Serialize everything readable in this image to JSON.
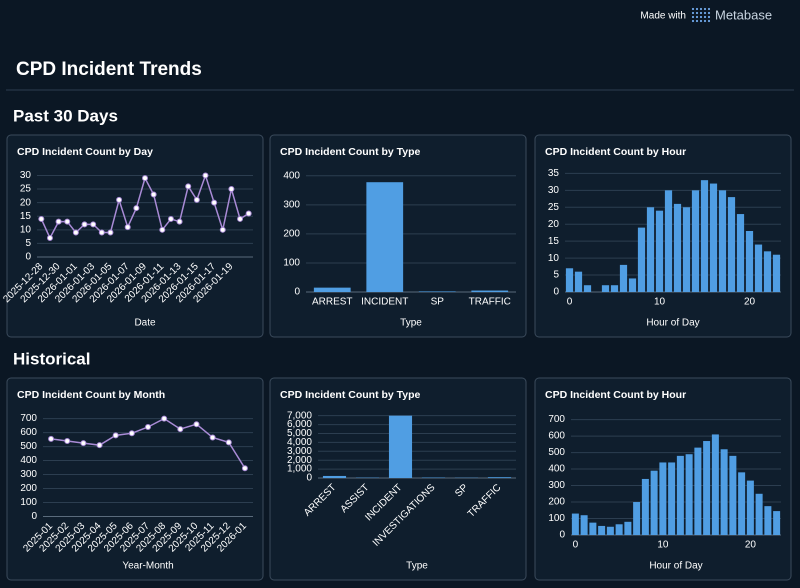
{
  "header": {
    "brand_prefix": "Made with",
    "brand": "Metabase",
    "title": "CPD Incident Trends"
  },
  "sections": [
    "Past 30 Days",
    "Historical"
  ],
  "chart_data": [
    {
      "type": "line",
      "title": "CPD Incident Count by Day",
      "xlabel": "Date",
      "categories": [
        "2025-12-28",
        null,
        "2025-12-30",
        null,
        "2026-01-01",
        null,
        "2026-01-03",
        null,
        "2026-01-05",
        null,
        "2026-01-07",
        null,
        "2026-01-09",
        null,
        "2026-01-11",
        null,
        "2026-01-13",
        null,
        "2026-01-15",
        null,
        "2026-01-17",
        null,
        "2026-01-19",
        null,
        null
      ],
      "values": [
        14,
        7,
        13,
        13,
        9,
        12,
        12,
        9,
        9,
        21,
        11,
        18,
        29,
        23,
        10,
        14,
        13,
        26,
        21,
        30,
        20,
        10,
        25,
        14,
        16
      ],
      "color": "#a98bd6",
      "ylim": [
        0,
        32
      ],
      "yticks": [
        0,
        5,
        10,
        15,
        20,
        25,
        30
      ],
      "grid": true
    },
    {
      "type": "bar",
      "title": "CPD Incident Count by Type",
      "xlabel": "Type",
      "categories": [
        "ARREST",
        "INCIDENT",
        "SP",
        "TRAFFIC"
      ],
      "values": [
        15,
        378,
        2,
        5
      ],
      "color": "#509ee3",
      "ylim": [
        0,
        420
      ],
      "yticks": [
        0,
        100,
        200,
        300,
        400
      ],
      "grid": true
    },
    {
      "type": "bar",
      "title": "CPD Incident Count by Hour",
      "xlabel": "Hour of Day",
      "x": [
        0,
        1,
        2,
        3,
        4,
        5,
        6,
        7,
        8,
        9,
        10,
        11,
        12,
        13,
        14,
        15,
        16,
        17,
        18,
        19,
        20,
        21,
        22,
        23
      ],
      "values": [
        7,
        6,
        2,
        0,
        2,
        2,
        8,
        4,
        19,
        25,
        24,
        30,
        26,
        25,
        30,
        33,
        32,
        30,
        28,
        23,
        18,
        14,
        12,
        11
      ],
      "color": "#509ee3",
      "xlim": [
        -0.5,
        23.5
      ],
      "xticks": [
        0,
        10,
        20
      ],
      "ylim": [
        0,
        36
      ],
      "yticks": [
        0,
        5,
        10,
        15,
        20,
        25,
        30,
        35
      ],
      "grid": true
    },
    {
      "type": "line",
      "title": "CPD Incident Count by Month",
      "xlabel": "Year-Month",
      "categories": [
        "2025-01",
        "2025-02",
        "2025-03",
        "2025-04",
        "2025-05",
        "2025-06",
        "2025-07",
        "2025-08",
        "2025-09",
        "2025-10",
        "2025-11",
        "2025-12",
        "2026-01"
      ],
      "values": [
        555,
        540,
        525,
        510,
        580,
        595,
        640,
        700,
        625,
        660,
        565,
        530,
        345
      ],
      "color": "#a98bd6",
      "ylim": [
        0,
        740
      ],
      "yticks": [
        0,
        100,
        200,
        300,
        400,
        500,
        600,
        700
      ],
      "grid": true
    },
    {
      "type": "bar",
      "title": "CPD Incident Count by Type",
      "xlabel": "Type",
      "categories": [
        "ARREST",
        "ASSIST",
        "INCIDENT",
        "INVESTIGATIONS",
        "SP",
        "TRAFFIC"
      ],
      "values": [
        230,
        40,
        7000,
        50,
        30,
        90
      ],
      "color": "#509ee3",
      "ylim": [
        0,
        7300
      ],
      "yticks": [
        0,
        {
          "value": 1000,
          "label": "1,000"
        },
        {
          "value": 2000,
          "label": "2,000"
        },
        {
          "value": 3000,
          "label": "3,000"
        },
        {
          "value": 4000,
          "label": "4,000"
        },
        {
          "value": 5000,
          "label": "5,000"
        },
        {
          "value": 6000,
          "label": "6,000"
        },
        {
          "value": 7000,
          "label": "7,000"
        }
      ],
      "grid": true
    },
    {
      "type": "bar",
      "title": "CPD Incident Count by Hour",
      "xlabel": "Hour of Day",
      "x": [
        0,
        1,
        2,
        3,
        4,
        5,
        6,
        7,
        8,
        9,
        10,
        11,
        12,
        13,
        14,
        15,
        16,
        17,
        18,
        19,
        20,
        21,
        22,
        23
      ],
      "values": [
        130,
        120,
        75,
        55,
        50,
        65,
        80,
        200,
        340,
        390,
        440,
        440,
        480,
        490,
        530,
        570,
        610,
        520,
        480,
        380,
        330,
        250,
        175,
        145
      ],
      "color": "#509ee3",
      "xlim": [
        -0.5,
        23.5
      ],
      "xticks": [
        0,
        10,
        20
      ],
      "ylim": [
        0,
        740
      ],
      "yticks": [
        0,
        100,
        200,
        300,
        400,
        500,
        600,
        700
      ],
      "grid": true
    }
  ]
}
